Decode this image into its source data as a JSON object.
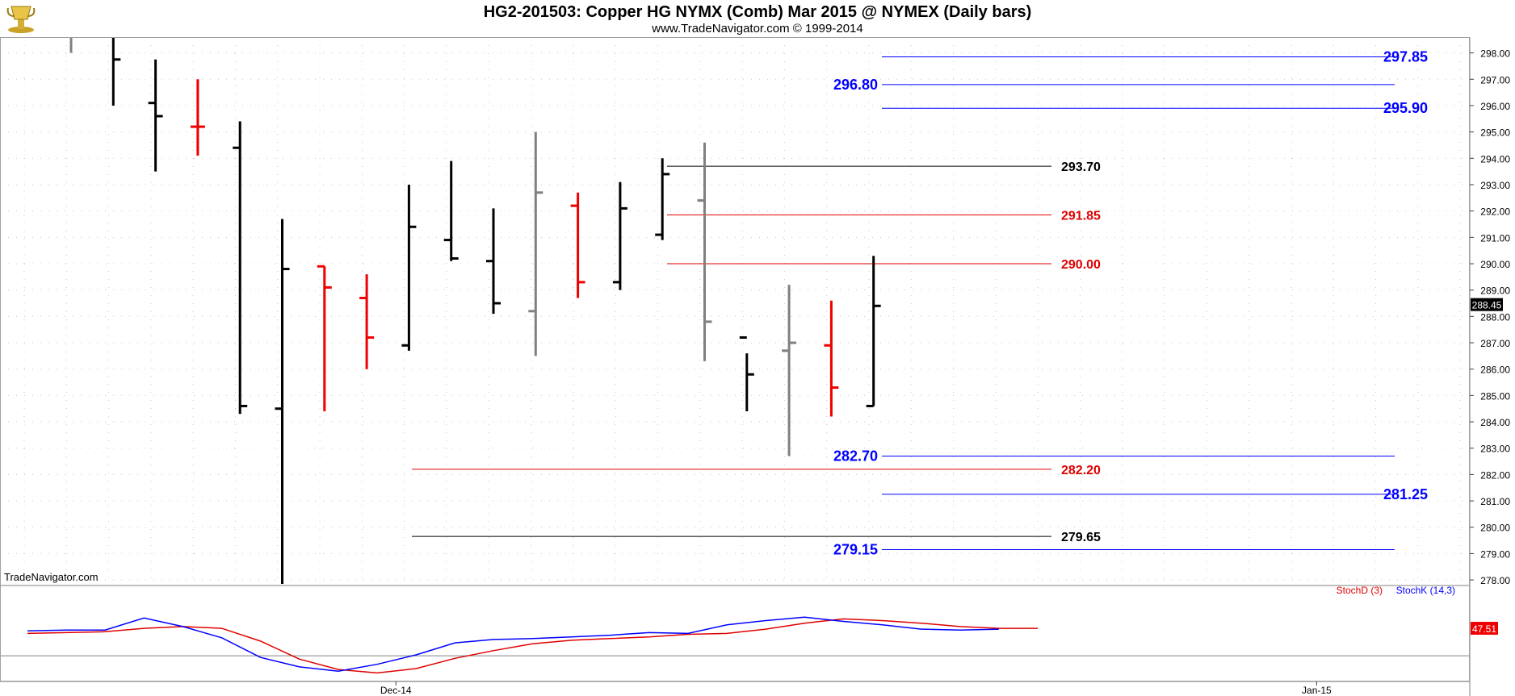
{
  "header": {
    "title": "HG2-201503:  Copper HG NYMX (Comb) Mar 2015 @ NYMEX  (Daily bars)",
    "subtitle": "www.TradeNavigator.com © 1999-2014",
    "logo_icon": "gold-trophy-icon"
  },
  "watermark": "TradeNavigator.com",
  "chart_data": [
    {
      "type": "ohlc",
      "price_axis": {
        "ticks": [
          "298.00",
          "297.00",
          "296.00",
          "295.00",
          "294.00",
          "293.00",
          "292.00",
          "291.00",
          "290.00",
          "289.00",
          "288.00",
          "287.00",
          "286.00",
          "285.00",
          "284.00",
          "283.00",
          "282.00",
          "281.00",
          "280.00",
          "279.00",
          "278.00"
        ],
        "ylim": [
          277.85,
          298.6
        ],
        "last_price": "288.45"
      },
      "date_axis": {
        "labels": [
          {
            "label": "Dec-14",
            "bar": 8.8
          },
          {
            "label": "Jan-15",
            "bar": 30.6
          }
        ]
      },
      "bars": [
        {
          "high": 298.6,
          "low": 298.0,
          "open": null,
          "close": null,
          "color": "gray"
        },
        {
          "high": 298.6,
          "low": 296.0,
          "open": null,
          "close": 297.75,
          "color": "black"
        },
        {
          "high": 297.75,
          "low": 293.5,
          "open": 296.1,
          "close": 295.6,
          "color": "black"
        },
        {
          "high": 297.0,
          "low": 294.1,
          "open": 295.2,
          "close": 295.2,
          "color": "red"
        },
        {
          "high": 295.4,
          "low": 284.3,
          "open": 294.4,
          "close": 284.6,
          "color": "black"
        },
        {
          "high": 291.7,
          "low": 277.85,
          "open": 284.5,
          "close": 289.8,
          "color": "black"
        },
        {
          "high": 289.9,
          "low": 284.4,
          "open": 289.9,
          "close": 289.1,
          "color": "red"
        },
        {
          "high": 289.6,
          "low": 286.0,
          "open": 288.7,
          "close": 287.2,
          "color": "red"
        },
        {
          "high": 293.0,
          "low": 286.7,
          "open": 286.9,
          "close": 291.4,
          "color": "black"
        },
        {
          "high": 293.9,
          "low": 290.1,
          "open": 290.9,
          "close": 290.2,
          "color": "black"
        },
        {
          "high": 292.1,
          "low": 288.1,
          "open": 290.1,
          "close": 288.5,
          "color": "black"
        },
        {
          "high": 295.0,
          "low": 286.5,
          "open": 288.2,
          "close": 292.7,
          "color": "gray"
        },
        {
          "high": 292.7,
          "low": 288.7,
          "open": 292.2,
          "close": 289.3,
          "color": "red"
        },
        {
          "high": 293.1,
          "low": 289.0,
          "open": 289.3,
          "close": 292.1,
          "color": "black"
        },
        {
          "high": 294.0,
          "low": 290.9,
          "open": 291.1,
          "close": 293.4,
          "color": "black"
        },
        {
          "high": 294.6,
          "low": 286.3,
          "open": 292.4,
          "close": 287.8,
          "color": "gray"
        },
        {
          "high": 286.6,
          "low": 284.4,
          "open": 287.2,
          "close": 285.8,
          "color": "black"
        },
        {
          "high": 289.2,
          "low": 282.7,
          "open": 286.7,
          "close": 287.0,
          "color": "gray"
        },
        {
          "high": 288.6,
          "low": 284.2,
          "open": 286.9,
          "close": 285.3,
          "color": "red"
        },
        {
          "high": 290.3,
          "low": 284.6,
          "open": 284.6,
          "close": 288.4,
          "color": "black"
        }
      ],
      "levels": [
        {
          "label": "297.85",
          "value": 297.85,
          "color": "#0000ff",
          "label_side": "right"
        },
        {
          "label": "296.80",
          "value": 296.8,
          "color": "#0000ff",
          "label_side": "left"
        },
        {
          "label": "295.90",
          "value": 295.9,
          "color": "#0000ff",
          "label_side": "right"
        },
        {
          "label": "293.70",
          "value": 293.7,
          "color": "#000000",
          "label_side": "right"
        },
        {
          "label": "291.85",
          "value": 291.85,
          "color": "#e00000",
          "label_side": "right"
        },
        {
          "label": "290.00",
          "value": 290.0,
          "color": "#e00000",
          "label_side": "right"
        },
        {
          "label": "282.70",
          "value": 282.7,
          "color": "#0000ff",
          "label_side": "left"
        },
        {
          "label": "282.20",
          "value": 282.2,
          "color": "#e00000",
          "label_side": "right"
        },
        {
          "label": "281.25",
          "value": 281.25,
          "color": "#0000ff",
          "label_side": "right"
        },
        {
          "label": "279.65",
          "value": 279.65,
          "color": "#000000",
          "label_side": "right"
        },
        {
          "label": "279.15",
          "value": 279.15,
          "color": "#0000ff",
          "label_side": "left"
        }
      ]
    },
    {
      "type": "line",
      "legend": [
        {
          "name": "StochD (3)",
          "color": "#e00000"
        },
        {
          "name": "StochK (14,3)",
          "color": "#0000ff"
        }
      ],
      "last_value": "47.51",
      "ylim": [
        -10,
        100
      ],
      "reference_level": 20,
      "series": [
        {
          "name": "StochD (3)",
          "color": "#e00000",
          "values": [
            46,
            47,
            48,
            52,
            54,
            52,
            37,
            16,
            4,
            0,
            5,
            17,
            26,
            34,
            38,
            40,
            42,
            45,
            46,
            51,
            58,
            63,
            61,
            58,
            54,
            52,
            52
          ]
        },
        {
          "name": "StochK (14,3)",
          "color": "#0000ff",
          "values": [
            49,
            50,
            50,
            64,
            54,
            41,
            18,
            7,
            2,
            10,
            21,
            35,
            39,
            40,
            42,
            44,
            47,
            46,
            56,
            61,
            65,
            60,
            56,
            51,
            50,
            51
          ]
        }
      ]
    }
  ]
}
